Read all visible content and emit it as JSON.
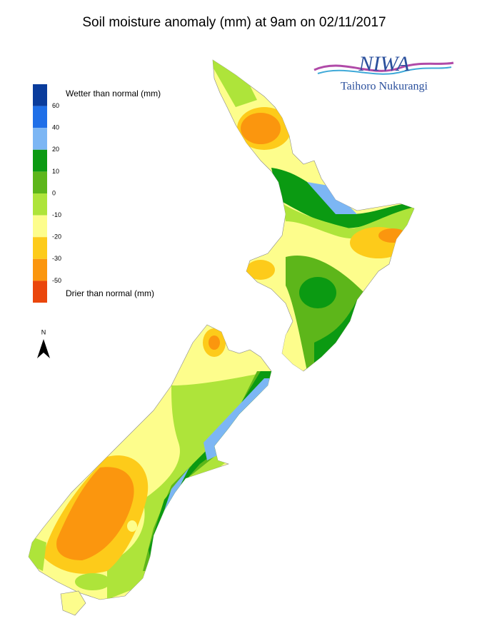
{
  "title": "Soil moisture anomaly (mm) at 9am on 02/11/2017",
  "logo": {
    "name": "NIWA",
    "subtitle": "Taihoro Nukurangi"
  },
  "north": "N",
  "legend": {
    "wetter": "Wetter than normal (mm)",
    "drier": "Drier than normal (mm)",
    "colors": [
      "#0a3c9c",
      "#1f6fe8",
      "#7cb6f4",
      "#0b9a12",
      "#5db61a",
      "#aee43a",
      "#fdfd8c",
      "#fdcb1a",
      "#fb960e",
      "#ea460c"
    ],
    "ticks": [
      60,
      40,
      20,
      10,
      0,
      -10,
      -20,
      -30,
      -50
    ]
  }
}
